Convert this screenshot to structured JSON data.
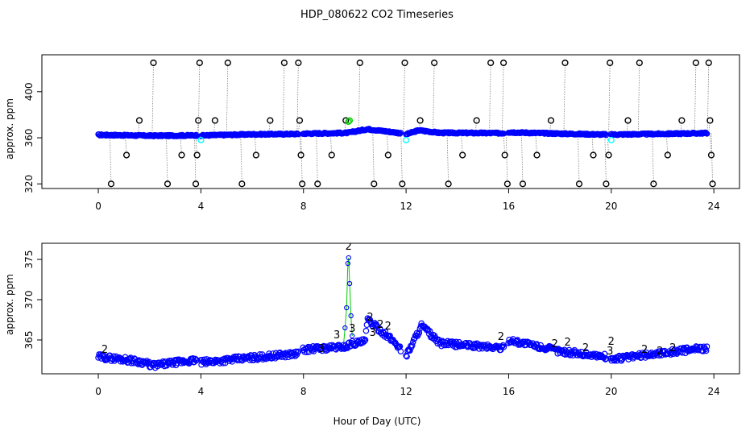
{
  "chart_data": [
    {
      "type": "scatter",
      "title": "HDP_080622  CO2 Timeseries",
      "ylabel": "approx. ppm",
      "xlim": [
        -2.2,
        25
      ],
      "ylim": [
        316,
        432
      ],
      "xticks": [
        "0",
        "4",
        "8",
        "12",
        "16",
        "20",
        "24"
      ],
      "yticks": [
        "320",
        "360",
        "400"
      ],
      "colors": {
        "main": "#0000ff",
        "flag1": "#00ffff",
        "flag2": "#00cc00",
        "flag3": "#000000",
        "spike": "#808080"
      },
      "baseline": [
        [
          0.0,
          362.5
        ],
        [
          1.0,
          362.2
        ],
        [
          2.0,
          361.8
        ],
        [
          3.0,
          361.9
        ],
        [
          3.8,
          362.1
        ],
        [
          4.0,
          362.0
        ],
        [
          6.0,
          363.0
        ],
        [
          7.8,
          363.3
        ],
        [
          8.0,
          363.6
        ],
        [
          9.7,
          364.2
        ],
        [
          10.5,
          367.5
        ],
        [
          11.6,
          364.6
        ],
        [
          12.0,
          363.0
        ],
        [
          12.5,
          366.5
        ],
        [
          13.3,
          364.3
        ],
        [
          15.8,
          364.0
        ],
        [
          16.0,
          364.8
        ],
        [
          18.0,
          363.6
        ],
        [
          19.8,
          362.8
        ],
        [
          20.0,
          362.8
        ],
        [
          22.0,
          363.4
        ],
        [
          23.7,
          364.0
        ]
      ],
      "spikes": [
        {
          "x": 0.5,
          "y": 320
        },
        {
          "x": 1.1,
          "y": 345
        },
        {
          "x": 1.6,
          "y": 375
        },
        {
          "x": 2.15,
          "y": 425
        },
        {
          "x": 2.7,
          "y": 320
        },
        {
          "x": 3.25,
          "y": 345
        },
        {
          "x": 3.8,
          "y": 320
        },
        {
          "x": 3.85,
          "y": 345
        },
        {
          "x": 3.9,
          "y": 375
        },
        {
          "x": 3.95,
          "y": 425
        },
        {
          "x": 4.55,
          "y": 375
        },
        {
          "x": 5.05,
          "y": 425
        },
        {
          "x": 5.6,
          "y": 320
        },
        {
          "x": 6.15,
          "y": 345
        },
        {
          "x": 6.7,
          "y": 375
        },
        {
          "x": 7.25,
          "y": 425
        },
        {
          "x": 7.8,
          "y": 425
        },
        {
          "x": 7.85,
          "y": 375
        },
        {
          "x": 7.9,
          "y": 345
        },
        {
          "x": 7.95,
          "y": 320
        },
        {
          "x": 8.55,
          "y": 320
        },
        {
          "x": 9.1,
          "y": 345
        },
        {
          "x": 9.65,
          "y": 375
        },
        {
          "x": 10.2,
          "y": 425
        },
        {
          "x": 10.75,
          "y": 320
        },
        {
          "x": 11.3,
          "y": 345
        },
        {
          "x": 11.85,
          "y": 320
        },
        {
          "x": 11.95,
          "y": 425
        },
        {
          "x": 12.55,
          "y": 375
        },
        {
          "x": 13.1,
          "y": 425
        },
        {
          "x": 13.65,
          "y": 320
        },
        {
          "x": 14.2,
          "y": 345
        },
        {
          "x": 14.75,
          "y": 375
        },
        {
          "x": 15.3,
          "y": 425
        },
        {
          "x": 15.8,
          "y": 425
        },
        {
          "x": 15.85,
          "y": 345
        },
        {
          "x": 15.95,
          "y": 320
        },
        {
          "x": 16.55,
          "y": 320
        },
        {
          "x": 17.1,
          "y": 345
        },
        {
          "x": 17.65,
          "y": 375
        },
        {
          "x": 18.2,
          "y": 425
        },
        {
          "x": 18.75,
          "y": 320
        },
        {
          "x": 19.3,
          "y": 345
        },
        {
          "x": 19.8,
          "y": 320
        },
        {
          "x": 19.9,
          "y": 345
        },
        {
          "x": 19.95,
          "y": 425
        },
        {
          "x": 20.65,
          "y": 375
        },
        {
          "x": 21.1,
          "y": 425
        },
        {
          "x": 21.65,
          "y": 320
        },
        {
          "x": 22.2,
          "y": 345
        },
        {
          "x": 22.75,
          "y": 375
        },
        {
          "x": 23.3,
          "y": 425
        },
        {
          "x": 23.8,
          "y": 425
        },
        {
          "x": 23.85,
          "y": 375
        },
        {
          "x": 23.9,
          "y": 345
        },
        {
          "x": 23.95,
          "y": 320
        }
      ],
      "cyan_points": [
        {
          "x": 4.0,
          "y": 358
        },
        {
          "x": 12.0,
          "y": 358
        },
        {
          "x": 20.0,
          "y": 358
        }
      ],
      "green_points": [
        {
          "x": 9.8,
          "y": 375
        },
        {
          "x": 9.75,
          "y": 374
        }
      ]
    },
    {
      "type": "scatter",
      "title": "",
      "xlabel": "Hour of Day (UTC)",
      "ylabel": "approx. ppm",
      "xlim": [
        -2.2,
        25
      ],
      "ylim": [
        360.8,
        377
      ],
      "xticks": [
        "0",
        "4",
        "8",
        "12",
        "16",
        "20",
        "24"
      ],
      "yticks": [
        "365",
        "370",
        "375"
      ],
      "colors": {
        "main": "#0000ff",
        "label2": "#00cc00",
        "label3": "#000000"
      },
      "baseline": [
        [
          0.0,
          362.9
        ],
        [
          1.0,
          362.6
        ],
        [
          1.8,
          362.2
        ],
        [
          2.1,
          361.8
        ],
        [
          3.0,
          362.2
        ],
        [
          3.9,
          362.5
        ],
        [
          4.0,
          362.2
        ],
        [
          6.0,
          362.8
        ],
        [
          7.8,
          363.3
        ],
        [
          8.0,
          363.8
        ],
        [
          9.7,
          364.2
        ],
        [
          9.8,
          364.5
        ],
        [
          10.4,
          364.8
        ],
        [
          10.5,
          367.5
        ],
        [
          11.6,
          364.6
        ],
        [
          12.0,
          363.0
        ],
        [
          12.6,
          366.8
        ],
        [
          13.3,
          364.6
        ],
        [
          15.8,
          364.0
        ],
        [
          16.0,
          365.0
        ],
        [
          18.0,
          363.6
        ],
        [
          19.8,
          362.9
        ],
        [
          20.0,
          362.6
        ],
        [
          22.0,
          363.4
        ],
        [
          23.7,
          364.0
        ]
      ],
      "spike_series": [
        [
          9.55,
          364.0
        ],
        [
          9.62,
          366.5
        ],
        [
          9.68,
          369.0
        ],
        [
          9.73,
          374.5
        ],
        [
          9.76,
          375.2
        ],
        [
          9.8,
          372.0
        ],
        [
          9.85,
          368.0
        ],
        [
          9.9,
          365.5
        ]
      ],
      "labels": [
        {
          "x": 9.76,
          "y": 376.2,
          "text": "2"
        },
        {
          "x": 9.9,
          "y": 366.0,
          "text": "3"
        },
        {
          "x": 9.3,
          "y": 365.2,
          "text": "3"
        },
        {
          "x": 10.6,
          "y": 367.4,
          "text": "2"
        },
        {
          "x": 10.7,
          "y": 365.5,
          "text": "3"
        },
        {
          "x": 11.0,
          "y": 366.5,
          "text": "2"
        },
        {
          "x": 11.3,
          "y": 366.3,
          "text": "2"
        },
        {
          "x": 8.7,
          "y": 363.5,
          "text": "3"
        },
        {
          "x": 15.7,
          "y": 365.0,
          "text": "2"
        },
        {
          "x": 17.8,
          "y": 364.1,
          "text": "2"
        },
        {
          "x": 18.3,
          "y": 364.3,
          "text": "2"
        },
        {
          "x": 19.0,
          "y": 363.6,
          "text": "2"
        },
        {
          "x": 20.0,
          "y": 364.4,
          "text": "2"
        },
        {
          "x": 19.95,
          "y": 363.2,
          "text": "3"
        },
        {
          "x": 21.3,
          "y": 363.4,
          "text": "2"
        },
        {
          "x": 22.4,
          "y": 363.6,
          "text": "2"
        },
        {
          "x": 21.9,
          "y": 363.2,
          "text": "2"
        },
        {
          "x": 0.25,
          "y": 363.4,
          "text": "2"
        }
      ]
    }
  ]
}
